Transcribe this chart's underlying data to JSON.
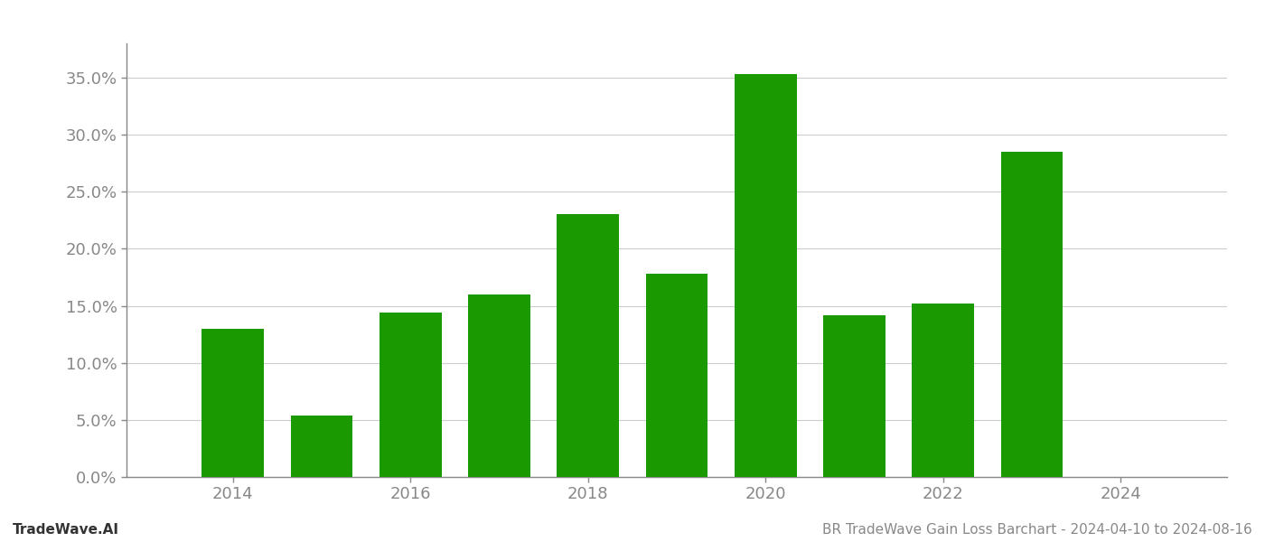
{
  "years": [
    2014,
    2015,
    2016,
    2017,
    2018,
    2019,
    2020,
    2021,
    2022,
    2023
  ],
  "values": [
    0.13,
    0.054,
    0.144,
    0.16,
    0.23,
    0.178,
    0.353,
    0.142,
    0.152,
    0.285
  ],
  "bar_color": "#1a9a00",
  "background_color": "#ffffff",
  "grid_color": "#cccccc",
  "axis_color": "#888888",
  "tick_color": "#888888",
  "ylim": [
    0,
    0.38
  ],
  "yticks": [
    0.0,
    0.05,
    0.1,
    0.15,
    0.2,
    0.25,
    0.3,
    0.35
  ],
  "xtick_years": [
    2014,
    2016,
    2018,
    2020,
    2022,
    2024
  ],
  "footer_left": "TradeWave.AI",
  "footer_right": "BR TradeWave Gain Loss Barchart - 2024-04-10 to 2024-08-16",
  "bar_width": 0.7,
  "fig_width": 14.0,
  "fig_height": 6.0,
  "dpi": 100,
  "xlim_left": 2012.8,
  "xlim_right": 2025.2
}
